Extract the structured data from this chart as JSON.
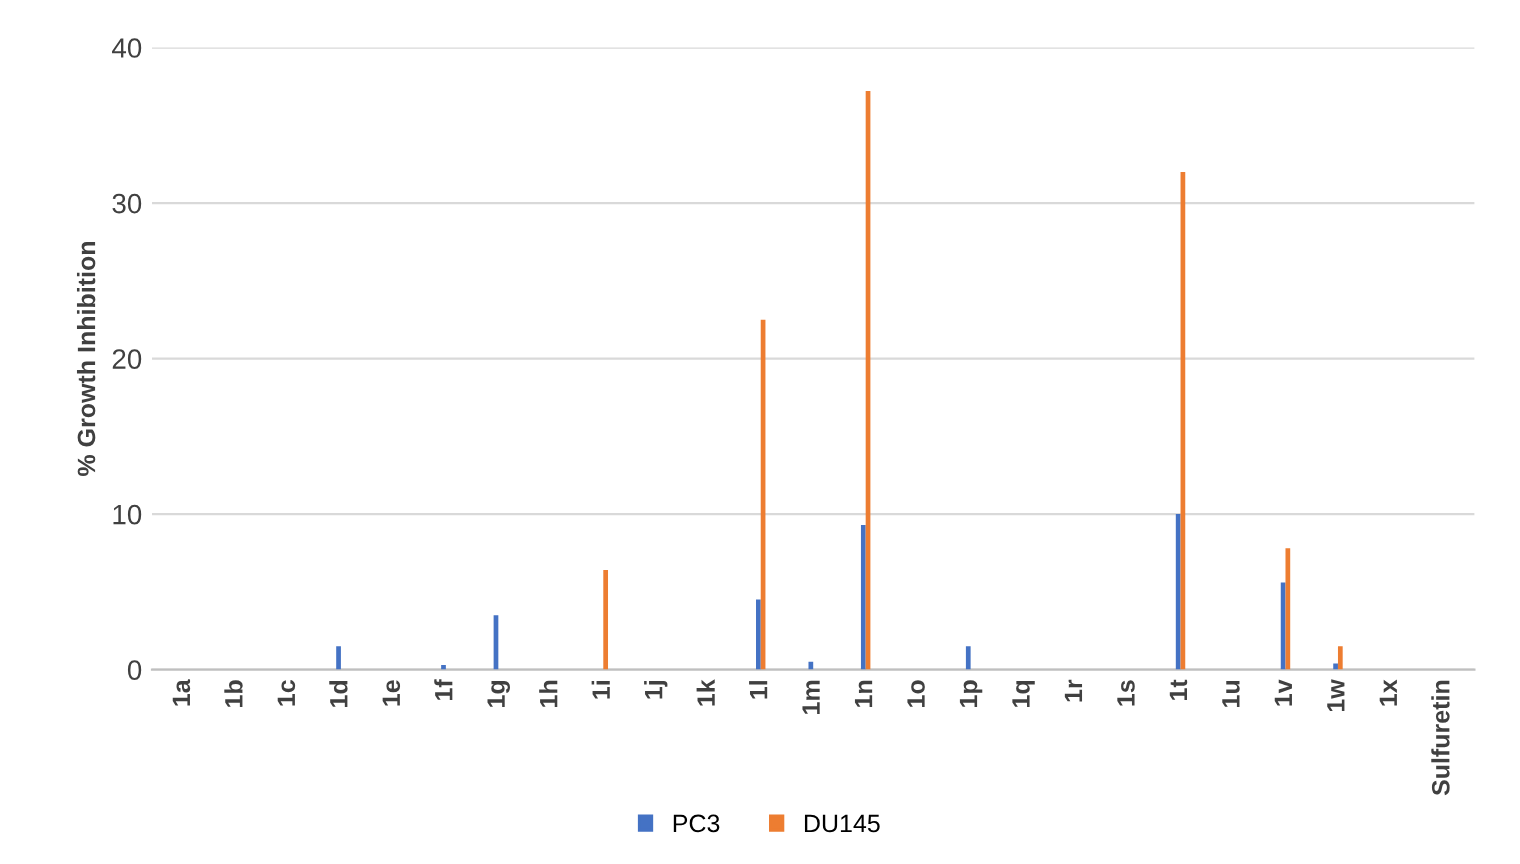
{
  "chart_data": {
    "type": "bar",
    "ylabel": "% Growth Inhibition",
    "categories": [
      "1a",
      "1b",
      "1c",
      "1d",
      "1e",
      "1f",
      "1g",
      "1h",
      "1i",
      "1j",
      "1k",
      "1l",
      "1m",
      "1n",
      "1o",
      "1p",
      "1q",
      "1r",
      "1s",
      "1t",
      "1u",
      "1v",
      "1w",
      "1x",
      "Sulfuretin"
    ],
    "series": [
      {
        "name": "PC3",
        "color": "#4472c4",
        "values": [
          0,
          0,
          0,
          1.5,
          0,
          0.3,
          3.5,
          0,
          0,
          0,
          0,
          4.5,
          0.5,
          9.3,
          0,
          1.5,
          0,
          0,
          0,
          10.0,
          0,
          5.6,
          0.4,
          0,
          0
        ]
      },
      {
        "name": "DU145",
        "color": "#ed7d31",
        "values": [
          0,
          0,
          0,
          0,
          0,
          0,
          0,
          0,
          6.4,
          0,
          0,
          22.5,
          0,
          37.2,
          0,
          0,
          0,
          0,
          0,
          32.0,
          0,
          7.8,
          1.5,
          0,
          0
        ]
      }
    ],
    "ylim": [
      0,
      40
    ],
    "yticks": [
      0,
      10,
      20,
      30,
      40
    ],
    "grid": "y",
    "legend": "bottom"
  }
}
